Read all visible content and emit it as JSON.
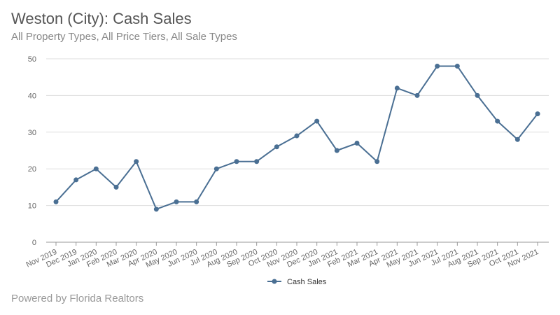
{
  "header": {
    "title": "Weston (City): Cash Sales",
    "subtitle": "All Property Types, All Price Tiers, All Sale Types"
  },
  "footer": {
    "text": "Powered by Florida Realtors"
  },
  "colors": {
    "series": "#4a6f93",
    "grid": "#dddddd",
    "axis": "#999999"
  },
  "chart_data": {
    "type": "line",
    "title": "Weston (City): Cash Sales",
    "subtitle": "All Property Types, All Price Tiers, All Sale Types",
    "xlabel": "",
    "ylabel": "",
    "ylim": [
      0,
      50
    ],
    "yticks": [
      0,
      10,
      20,
      30,
      40,
      50
    ],
    "grid": true,
    "legend": "bottom-center",
    "x": [
      "Nov 2019",
      "Dec 2019",
      "Jan 2020",
      "Feb 2020",
      "Mar 2020",
      "Apr 2020",
      "May 2020",
      "Jun 2020",
      "Jul 2020",
      "Aug 2020",
      "Sep 2020",
      "Oct 2020",
      "Nov 2020",
      "Dec 2020",
      "Jan 2021",
      "Feb 2021",
      "Mar 2021",
      "Apr 2021",
      "May 2021",
      "Jun 2021",
      "Jul 2021",
      "Aug 2021",
      "Sep 2021",
      "Oct 2021",
      "Nov 2021"
    ],
    "series": [
      {
        "name": "Cash Sales",
        "values": [
          11,
          17,
          20,
          15,
          22,
          9,
          11,
          11,
          20,
          22,
          22,
          26,
          29,
          33,
          25,
          27,
          22,
          42,
          40,
          48,
          48,
          40,
          33,
          28,
          35
        ]
      }
    ]
  }
}
